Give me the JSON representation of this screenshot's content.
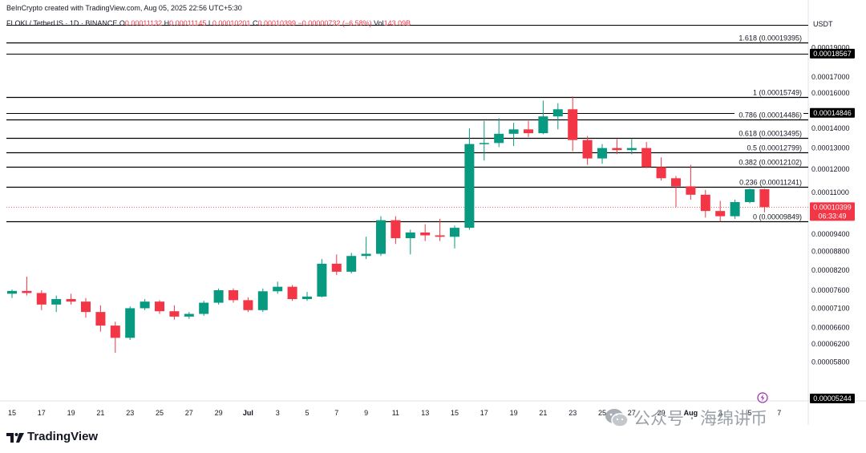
{
  "header": {
    "credit": "BeInCrypto created with TradingView.com, Aug 05, 2025 22:56 UTC+5:30",
    "symbol": "FLOKI / TetherUS · 1D · BINANCE",
    "open_label": "O",
    "open": "0.00011132",
    "high_label": "H",
    "high": "0.00011145",
    "low_label": "L",
    "low": "0.00010201",
    "close_label": "C",
    "close": "0.00010399",
    "change": "−0.00000732 (−6.58%)",
    "vol_label": "Vol",
    "vol": "143.09B",
    "currency": "USDT"
  },
  "branding": {
    "logo_text": "TradingView",
    "watermark": "公众号 · 海绵讲币"
  },
  "colors": {
    "up": "#089981",
    "down": "#f23645",
    "fib_line": "#000000",
    "badge": "#000000",
    "current": "#f23645"
  },
  "chart_data": {
    "type": "candlestick",
    "y_scale": "log",
    "ylim": [
      5.05e-05,
      0.000207
    ],
    "y_ticks": [
      "0.00019000",
      "0.00017000",
      "0.00016000",
      "0.00014000",
      "0.00013000",
      "0.00012000",
      "0.00011000",
      "0.00009400",
      "0.00008800",
      "0.00008200",
      "0.00007600",
      "0.00007100",
      "0.00006600",
      "0.00006200",
      "0.00005800"
    ],
    "x_labels": [
      {
        "label": "15",
        "i": 0
      },
      {
        "label": "17",
        "i": 2
      },
      {
        "label": "19",
        "i": 4
      },
      {
        "label": "21",
        "i": 6
      },
      {
        "label": "23",
        "i": 8
      },
      {
        "label": "25",
        "i": 10
      },
      {
        "label": "27",
        "i": 12
      },
      {
        "label": "29",
        "i": 14
      },
      {
        "label": "Jul",
        "i": 16
      },
      {
        "label": "3",
        "i": 18
      },
      {
        "label": "5",
        "i": 20
      },
      {
        "label": "7",
        "i": 22
      },
      {
        "label": "9",
        "i": 24
      },
      {
        "label": "11",
        "i": 26
      },
      {
        "label": "13",
        "i": 28
      },
      {
        "label": "15",
        "i": 30
      },
      {
        "label": "17",
        "i": 32
      },
      {
        "label": "19",
        "i": 34
      },
      {
        "label": "21",
        "i": 36
      },
      {
        "label": "23",
        "i": 38
      },
      {
        "label": "25",
        "i": 40
      },
      {
        "label": "27",
        "i": 42
      },
      {
        "label": "29",
        "i": 44
      },
      {
        "label": "Aug",
        "i": 46
      },
      {
        "label": "3",
        "i": 48
      },
      {
        "label": "5",
        "i": 50
      },
      {
        "label": "7",
        "i": 52
      }
    ],
    "candles": [
      {
        "o": 7.5e-05,
        "h": 7.62e-05,
        "l": 7.38e-05,
        "c": 7.58e-05
      },
      {
        "o": 7.58e-05,
        "h": 8e-05,
        "l": 7.45e-05,
        "c": 7.52e-05
      },
      {
        "o": 7.52e-05,
        "h": 7.6e-05,
        "l": 7.05e-05,
        "c": 7.2e-05
      },
      {
        "o": 7.2e-05,
        "h": 7.45e-05,
        "l": 7e-05,
        "c": 7.35e-05
      },
      {
        "o": 7.35e-05,
        "h": 7.5e-05,
        "l": 7.2e-05,
        "c": 7.28e-05
      },
      {
        "o": 7.28e-05,
        "h": 7.38e-05,
        "l": 6.85e-05,
        "c": 7e-05
      },
      {
        "o": 7e-05,
        "h": 7.18e-05,
        "l": 6.5e-05,
        "c": 6.65e-05
      },
      {
        "o": 6.65e-05,
        "h": 6.75e-05,
        "l": 6e-05,
        "c": 6.35e-05
      },
      {
        "o": 6.35e-05,
        "h": 7.15e-05,
        "l": 6.3e-05,
        "c": 7.1e-05
      },
      {
        "o": 7.1e-05,
        "h": 7.35e-05,
        "l": 7.05e-05,
        "c": 7.28e-05
      },
      {
        "o": 7.28e-05,
        "h": 7.32e-05,
        "l": 6.95e-05,
        "c": 7.02e-05
      },
      {
        "o": 7.02e-05,
        "h": 7.18e-05,
        "l": 6.8e-05,
        "c": 6.88e-05
      },
      {
        "o": 6.88e-05,
        "h": 7e-05,
        "l": 6.82e-05,
        "c": 6.95e-05
      },
      {
        "o": 6.95e-05,
        "h": 7.3e-05,
        "l": 6.9e-05,
        "c": 7.25e-05
      },
      {
        "o": 7.25e-05,
        "h": 7.65e-05,
        "l": 7.2e-05,
        "c": 7.6e-05
      },
      {
        "o": 7.6e-05,
        "h": 7.65e-05,
        "l": 7.25e-05,
        "c": 7.32e-05
      },
      {
        "o": 7.32e-05,
        "h": 7.4e-05,
        "l": 7e-05,
        "c": 7.05e-05
      },
      {
        "o": 7.05e-05,
        "h": 7.65e-05,
        "l": 7e-05,
        "c": 7.57e-05
      },
      {
        "o": 7.57e-05,
        "h": 7.85e-05,
        "l": 7.5e-05,
        "c": 7.7e-05
      },
      {
        "o": 7.7e-05,
        "h": 7.75e-05,
        "l": 7.3e-05,
        "c": 7.35e-05
      },
      {
        "o": 7.35e-05,
        "h": 7.55e-05,
        "l": 7.3e-05,
        "c": 7.42e-05
      },
      {
        "o": 7.42e-05,
        "h": 8.55e-05,
        "l": 7.4e-05,
        "c": 8.4e-05
      },
      {
        "o": 8.4e-05,
        "h": 8.7e-05,
        "l": 8.05e-05,
        "c": 8.15e-05
      },
      {
        "o": 8.15e-05,
        "h": 8.75e-05,
        "l": 8.1e-05,
        "c": 8.65e-05
      },
      {
        "o": 8.65e-05,
        "h": 9.3e-05,
        "l": 8.55e-05,
        "c": 8.72e-05
      },
      {
        "o": 8.72e-05,
        "h": 0.0001005,
        "l": 8.65e-05,
        "c": 9.9e-05
      },
      {
        "o": 9.9e-05,
        "h": 0.0001005,
        "l": 9.05e-05,
        "c": 9.25e-05
      },
      {
        "o": 9.25e-05,
        "h": 9.55e-05,
        "l": 8.7e-05,
        "c": 9.45e-05
      },
      {
        "o": 9.45e-05,
        "h": 9.75e-05,
        "l": 9.15e-05,
        "c": 9.35e-05
      },
      {
        "o": 9.35e-05,
        "h": 9.95e-05,
        "l": 9.15e-05,
        "c": 9.3e-05
      },
      {
        "o": 9.3e-05,
        "h": 9.7e-05,
        "l": 8.9e-05,
        "c": 9.62e-05
      },
      {
        "o": 9.62e-05,
        "h": 0.00014,
        "l": 9.55e-05,
        "c": 0.000132
      },
      {
        "o": 0.000132,
        "h": 0.000144,
        "l": 0.000124,
        "c": 0.0001325
      },
      {
        "o": 0.0001325,
        "h": 0.0001455,
        "l": 0.0001305,
        "c": 0.0001372
      },
      {
        "o": 0.0001372,
        "h": 0.000143,
        "l": 0.000131,
        "c": 0.0001395
      },
      {
        "o": 0.0001395,
        "h": 0.000144,
        "l": 0.0001355,
        "c": 0.0001375
      },
      {
        "o": 0.0001375,
        "h": 0.0001555,
        "l": 0.000137,
        "c": 0.0001465
      },
      {
        "o": 0.0001465,
        "h": 0.000154,
        "l": 0.0001395,
        "c": 0.0001505
      },
      {
        "o": 0.0001505,
        "h": 0.000158,
        "l": 0.0001285,
        "c": 0.000134
      },
      {
        "o": 0.000134,
        "h": 0.000136,
        "l": 0.000122,
        "c": 0.000125
      },
      {
        "o": 0.000125,
        "h": 0.000132,
        "l": 0.0001225,
        "c": 0.00013
      },
      {
        "o": 0.00013,
        "h": 0.0001345,
        "l": 0.000127,
        "c": 0.000129
      },
      {
        "o": 0.000129,
        "h": 0.0001345,
        "l": 0.000127,
        "c": 0.00013
      },
      {
        "o": 0.00013,
        "h": 0.000133,
        "l": 0.0001205,
        "c": 0.000121
      },
      {
        "o": 0.000121,
        "h": 0.0001255,
        "l": 0.000115,
        "c": 0.000116
      },
      {
        "o": 0.000116,
        "h": 0.000117,
        "l": 0.000104,
        "c": 0.0001125
      },
      {
        "o": 0.0001125,
        "h": 0.000122,
        "l": 0.000107,
        "c": 0.000109
      },
      {
        "o": 0.000109,
        "h": 0.000111,
        "l": 0.0001,
        "c": 0.0001025
      },
      {
        "o": 0.0001025,
        "h": 0.0001065,
        "l": 9.85e-05,
        "c": 0.0001005
      },
      {
        "o": 0.0001005,
        "h": 0.000107,
        "l": 9.95e-05,
        "c": 0.000106
      },
      {
        "o": 0.000106,
        "h": 0.0001115,
        "l": 0.0001055,
        "c": 0.0001113
      },
      {
        "o": 0.0001113,
        "h": 0.0001115,
        "l": 0.000102,
        "c": 0.000104
      }
    ],
    "fib_levels": [
      {
        "label": "1.618 (0.00019395)",
        "value": 0.00019395
      },
      {
        "label": "1 (0.00015749)",
        "value": 0.00015749
      },
      {
        "label": "0.786 (0.00014486)",
        "value": 0.00014486
      },
      {
        "label": "0.618 (0.00013495)",
        "value": 0.00013495
      },
      {
        "label": "0.5 (0.00012799)",
        "value": 0.00012799
      },
      {
        "label": "0.382 (0.00012102)",
        "value": 0.00012102
      },
      {
        "label": "0.236 (0.00011241)",
        "value": 0.00011241
      },
      {
        "label": "0 (0.00009849)",
        "value": 9.849e-05
      }
    ],
    "extra_lines": [
      {
        "value": 0.000207
      },
      {
        "value": 0.00018567
      },
      {
        "value": 0.00014846
      }
    ],
    "price_badges": [
      {
        "label": "0.00018567",
        "value": 0.00018567
      },
      {
        "label": "0.00014846",
        "value": 0.00014846
      },
      {
        "label": "0.00005244",
        "value": 5.05e-05
      }
    ],
    "current_price": {
      "label": "0.00010399",
      "countdown": "06:33:49",
      "value": 0.00010399
    }
  }
}
